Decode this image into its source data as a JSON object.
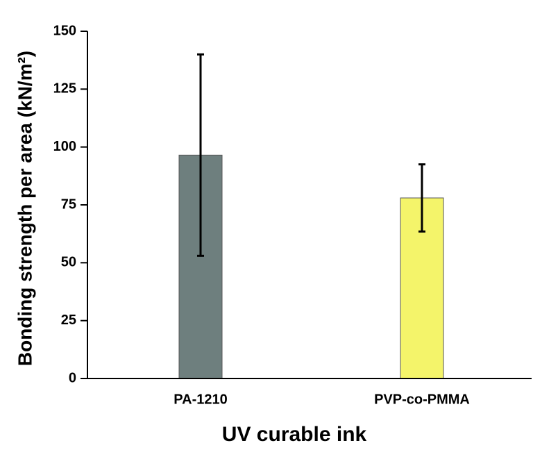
{
  "chart_data": {
    "type": "bar",
    "x_label": "UV curable ink",
    "y_label": "Bonding strength per area (kN/m²)",
    "categories": [
      "PA-1210",
      "PVP-co-PMMA"
    ],
    "values": [
      96.5,
      78
    ],
    "errors": [
      43.5,
      14.5
    ],
    "colors": [
      "#6e7f7e",
      "#f4f46a"
    ],
    "ylim": [
      0,
      150
    ],
    "yticks": [
      0,
      25,
      50,
      75,
      100,
      125,
      150
    ],
    "grid": false
  }
}
